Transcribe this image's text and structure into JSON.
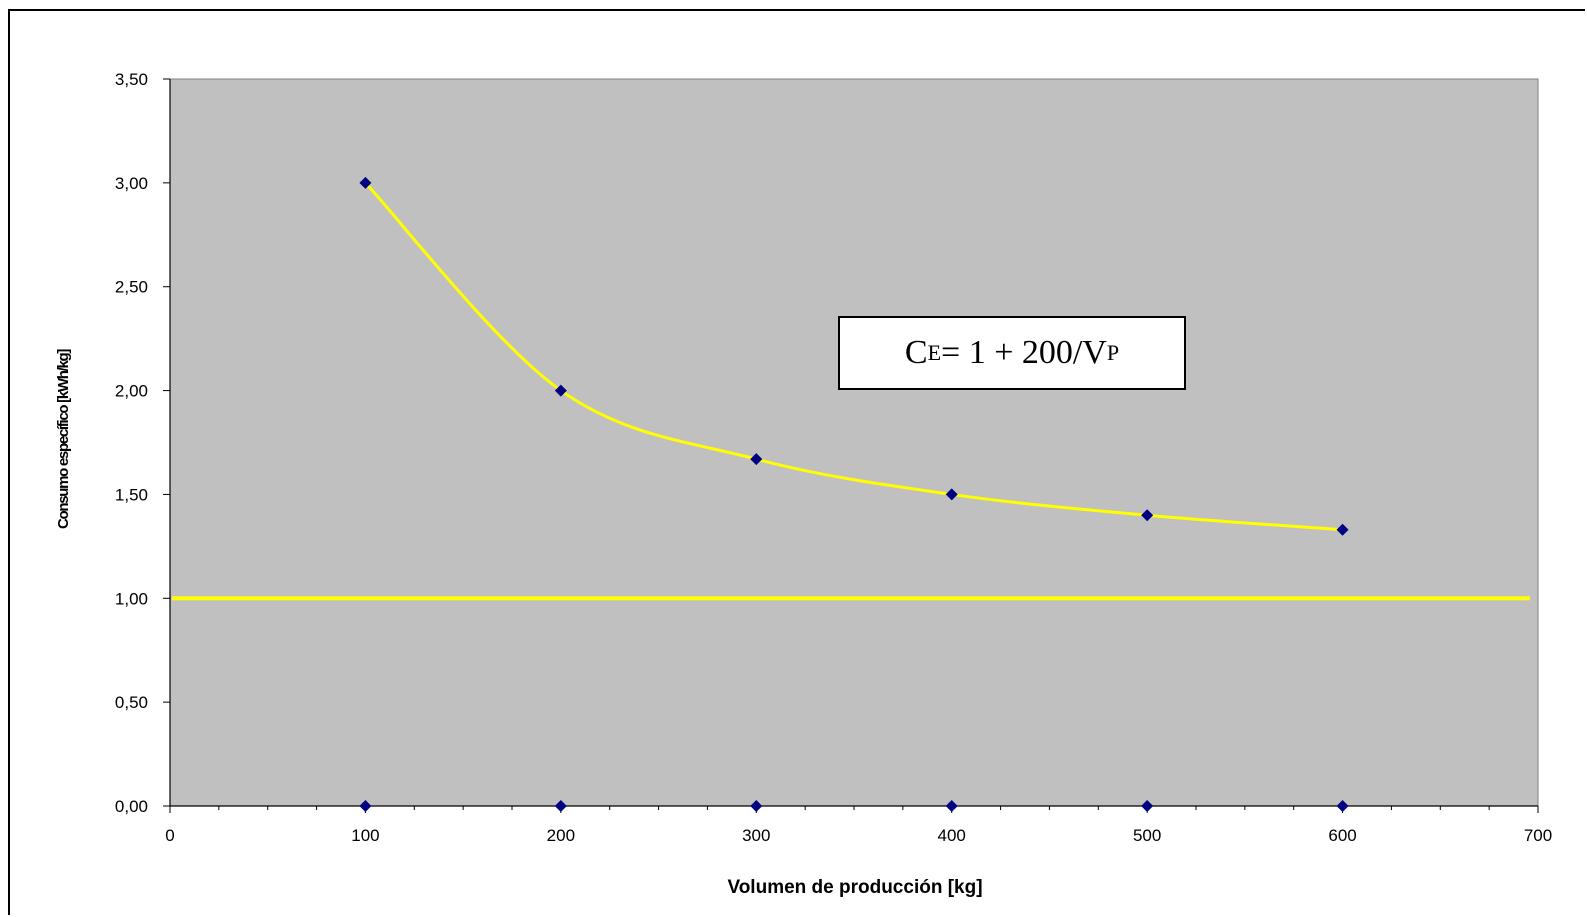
{
  "chart_data": {
    "type": "scatter",
    "xlabel": "Volumen de producción [kg]",
    "ylabel": "Consumo específico [kWh/kg]",
    "xlim": [
      0,
      700
    ],
    "ylim": [
      0,
      3.5
    ],
    "x_ticks": [
      "0",
      "100",
      "200",
      "300",
      "400",
      "500",
      "600",
      "700"
    ],
    "y_ticks": [
      "0,00",
      "0,50",
      "1,00",
      "1,50",
      "2,00",
      "2,50",
      "3,00",
      "3,50"
    ],
    "plot_background": "#c0c0c0",
    "grid": false,
    "series": [
      {
        "style": "markers+smooth-line",
        "marker_color": "#000080",
        "line_color": "#ffff00",
        "x": [
          100,
          200,
          300,
          400,
          500,
          600
        ],
        "y": [
          3.0,
          2.0,
          1.67,
          1.5,
          1.4,
          1.33
        ]
      },
      {
        "style": "markers",
        "marker_color": "#000080",
        "x": [
          100,
          200,
          300,
          400,
          500,
          600
        ],
        "y": [
          0,
          0,
          0,
          0,
          0,
          0
        ]
      },
      {
        "style": "horizontal-line",
        "line_color": "#ffff00",
        "y": 1.0
      }
    ],
    "annotation": {
      "prefix": "C",
      "prefix_sub": "E",
      "middle": "= 1 + 200/V",
      "suffix_sub": "P"
    }
  }
}
